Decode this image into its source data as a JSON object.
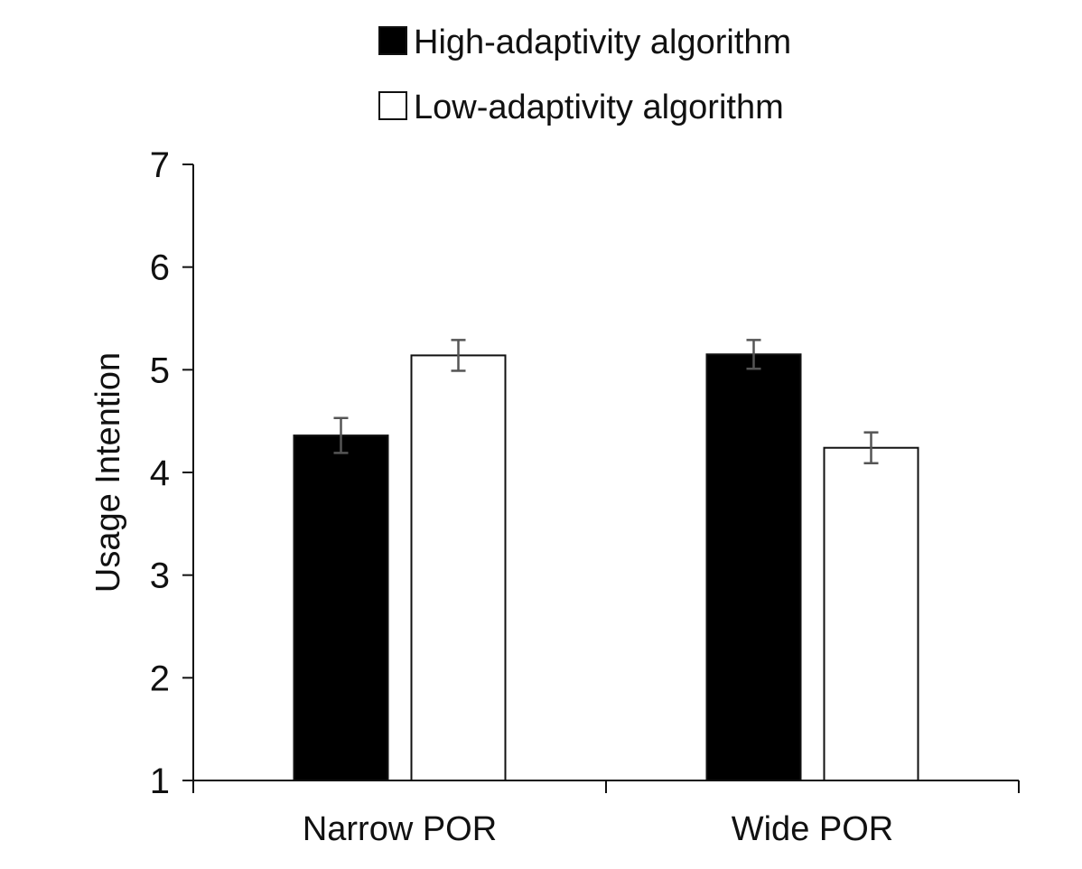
{
  "chart_data": {
    "type": "bar",
    "title": "",
    "xlabel": "",
    "ylabel": "Usage Intention",
    "ylim": [
      1,
      7
    ],
    "yticks": [
      1,
      2,
      3,
      4,
      5,
      6,
      7
    ],
    "categories": [
      "Narrow POR",
      "Wide POR"
    ],
    "series": [
      {
        "name": "High-adaptivity algorithm",
        "values": [
          4.36,
          5.15
        ],
        "errors": [
          0.17,
          0.14
        ],
        "color": "#000000"
      },
      {
        "name": "Low-adaptivity algorithm",
        "values": [
          5.14,
          4.24
        ],
        "errors": [
          0.15,
          0.15
        ],
        "color": "#ffffff"
      }
    ],
    "grid": false,
    "legend_position": "top"
  }
}
